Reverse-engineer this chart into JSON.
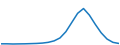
{
  "x": [
    0,
    1,
    2,
    3,
    4,
    5,
    6,
    7,
    8,
    9,
    10,
    11,
    12,
    13,
    14,
    15,
    16,
    17,
    18,
    19,
    20
  ],
  "y": [
    0.2,
    0.2,
    0.15,
    0.18,
    0.2,
    0.25,
    0.3,
    0.4,
    0.6,
    1.0,
    1.8,
    3.5,
    6.0,
    8.5,
    9.8,
    8.0,
    5.5,
    3.2,
    1.5,
    0.6,
    0.3
  ],
  "line_color": "#1a7abf",
  "line_width": 1.1,
  "background_color": "#ffffff",
  "ylim": [
    0,
    12
  ],
  "xlim": [
    0,
    20
  ]
}
